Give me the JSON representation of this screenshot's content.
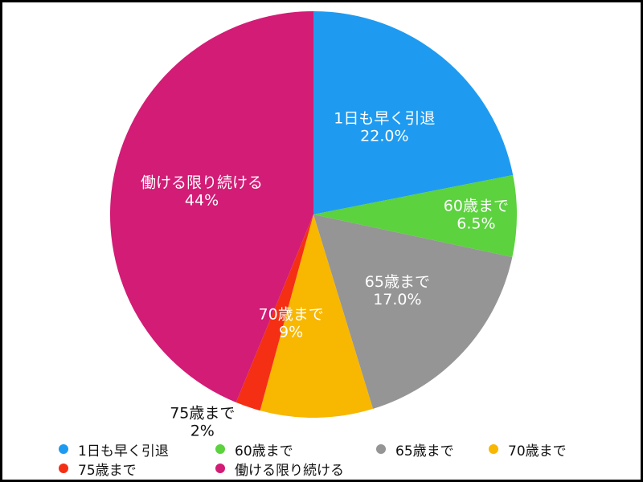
{
  "chart_data": {
    "type": "pie",
    "slices": [
      {
        "label": "1日も早く引退",
        "value_label": "22.0%",
        "value": 22.0,
        "color": "#1E9BF0",
        "text_color": "#ffffff"
      },
      {
        "label": "60歳まで",
        "value_label": "6.5%",
        "value": 6.5,
        "color": "#5BD23E",
        "text_color": "#ffffff"
      },
      {
        "label": "65歳まで",
        "value_label": "17.0%",
        "value": 17.0,
        "color": "#959595",
        "text_color": "#ffffff"
      },
      {
        "label": "70歳まで",
        "value_label": "9%",
        "value": 9,
        "color": "#F8B700",
        "text_color": "#ffffff"
      },
      {
        "label": "75歳まで",
        "value_label": "2%",
        "value": 2,
        "color": "#F52F14",
        "text_color": "#111111"
      },
      {
        "label": "働ける限り続ける",
        "value_label": "44%",
        "value": 44,
        "color": "#D21C76",
        "text_color": "#ffffff"
      }
    ],
    "start_angle_deg": 0,
    "direction": "clockwise",
    "legend_position": "bottom"
  }
}
